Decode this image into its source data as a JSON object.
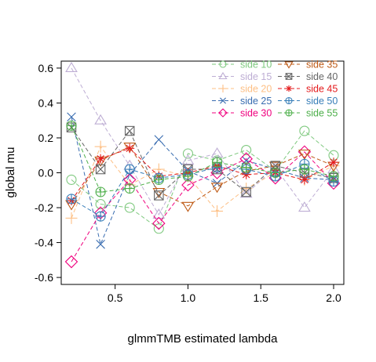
{
  "chart_data": {
    "type": "line",
    "xlabel": "glmmTMB estimated lambda",
    "ylabel": "global mu",
    "xlim": [
      0.13,
      2.07
    ],
    "ylim": [
      -0.64,
      0.64
    ],
    "xticks": [
      0.5,
      1.0,
      1.5,
      2.0
    ],
    "xtick_labels": [
      "0.5",
      "1.0",
      "1.5",
      "2.0"
    ],
    "yticks": [
      -0.6,
      -0.4,
      -0.2,
      0.0,
      0.2,
      0.4,
      0.6
    ],
    "ytick_labels": [
      "-0.6",
      "-0.4",
      "-0.2",
      "0.0",
      "0.2",
      "0.4",
      "0.6"
    ],
    "grid": false,
    "legend_position": "top-right",
    "x": [
      0.2,
      0.4,
      0.6,
      0.8,
      1.0,
      1.2,
      1.4,
      1.6,
      1.8,
      2.0
    ],
    "series": [
      {
        "name": "side 10",
        "color": "#7fc97f",
        "marker": "circle",
        "values": [
          -0.04,
          -0.18,
          -0.2,
          -0.32,
          0.11,
          0.07,
          0.13,
          0.01,
          0.24,
          0.1
        ]
      },
      {
        "name": "side 15",
        "color": "#beaed4",
        "marker": "triangle",
        "values": [
          0.6,
          0.3,
          0.04,
          -0.24,
          0.07,
          0.11,
          -0.12,
          0.03,
          -0.2,
          0.02
        ]
      },
      {
        "name": "side 20",
        "color": "#fdc086",
        "marker": "plus",
        "values": [
          -0.26,
          0.15,
          -0.07,
          0.02,
          -0.02,
          -0.22,
          -0.09,
          0.0,
          -0.04,
          0.04
        ]
      },
      {
        "name": "side 25",
        "color": "#386cb0",
        "marker": "x",
        "values": [
          0.32,
          -0.41,
          -0.01,
          0.19,
          0.01,
          -0.06,
          0.07,
          0.02,
          -0.03,
          -0.04
        ]
      },
      {
        "name": "side 30",
        "color": "#f0027f",
        "marker": "diamond",
        "values": [
          -0.51,
          -0.23,
          -0.04,
          -0.29,
          -0.07,
          0.0,
          0.08,
          -0.03,
          0.12,
          -0.06
        ]
      },
      {
        "name": "side 35",
        "color": "#bf5b17",
        "marker": "triangle-down",
        "values": [
          -0.18,
          0.07,
          0.15,
          -0.11,
          -0.19,
          -0.08,
          0.01,
          0.04,
          0.11,
          0.04
        ]
      },
      {
        "name": "side 40",
        "color": "#666666",
        "marker": "square-x",
        "values": [
          0.26,
          0.02,
          0.24,
          -0.13,
          0.02,
          0.02,
          -0.11,
          0.04,
          0.0,
          -0.03
        ]
      },
      {
        "name": "side 45",
        "color": "#e41a1c",
        "marker": "asterisk",
        "values": [
          -0.16,
          0.08,
          0.14,
          -0.02,
          0.0,
          0.04,
          -0.01,
          0.0,
          -0.04,
          0.06
        ]
      },
      {
        "name": "side 50",
        "color": "#377eb8",
        "marker": "circle-plus",
        "values": [
          -0.15,
          -0.25,
          0.02,
          -0.03,
          -0.01,
          0.03,
          0.02,
          -0.02,
          0.05,
          -0.05
        ]
      },
      {
        "name": "side 55",
        "color": "#4daf4a",
        "marker": "circle-plus",
        "values": [
          0.27,
          -0.11,
          -0.09,
          -0.04,
          -0.02,
          0.06,
          0.03,
          0.0,
          0.02,
          -0.02
        ]
      }
    ]
  }
}
